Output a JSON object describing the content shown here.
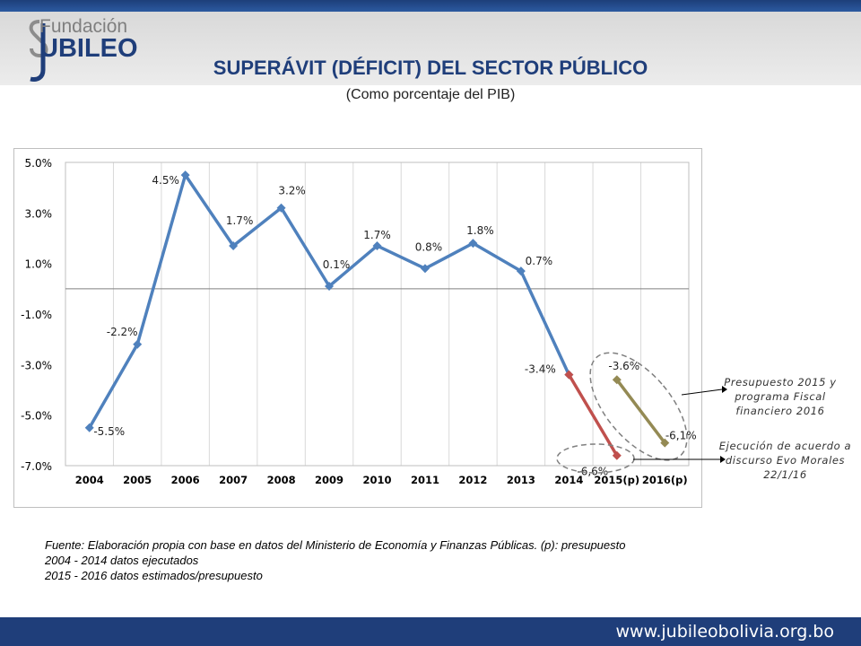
{
  "header": {
    "logo_line1": "Fundación",
    "logo_line2": "UBILEO",
    "title": "SUPERÁVIT (DÉFICIT) DEL SECTOR PÚBLICO",
    "subtitle": "(Como porcentaje del PIB)"
  },
  "colors": {
    "brand_blue": "#1f3e7a",
    "series_blue": "#4f81bd",
    "series_red": "#c0504d",
    "series_olive": "#948a54"
  },
  "chart_data": {
    "type": "line",
    "categories": [
      "2004",
      "2005",
      "2006",
      "2007",
      "2008",
      "2009",
      "2010",
      "2011",
      "2012",
      "2013",
      "2014",
      "2015(p)",
      "2016(p)"
    ],
    "ylim": [
      -7.0,
      5.0
    ],
    "yticks": [
      "5.0%",
      "3.0%",
      "1.0%",
      "-1.0%",
      "-3.0%",
      "-5.0%",
      "-7.0%"
    ],
    "grid": "vertical",
    "series": [
      {
        "values": [
          -5.5,
          -2.2,
          4.5,
          1.7,
          3.2,
          0.1,
          1.7,
          0.8,
          1.8,
          0.7,
          -3.4,
          null,
          null
        ],
        "labels": [
          "-5.5%",
          "-2.2%",
          "4.5%",
          "1.7%",
          "3.2%",
          "0.1%",
          "1.7%",
          "0.8%",
          "1.8%",
          "0.7%",
          "-3.4%",
          "",
          ""
        ],
        "color": "#4f81bd"
      },
      {
        "values": [
          null,
          null,
          null,
          null,
          null,
          null,
          null,
          null,
          null,
          null,
          -3.4,
          -6.6,
          null
        ],
        "labels": [
          "",
          "",
          "",
          "",
          "",
          "",
          "",
          "",
          "",
          "",
          "",
          "-6,6%",
          ""
        ],
        "color": "#c0504d"
      },
      {
        "values": [
          null,
          null,
          null,
          null,
          null,
          null,
          null,
          null,
          null,
          null,
          null,
          -3.6,
          -6.1
        ],
        "labels": [
          "",
          "",
          "",
          "",
          "",
          "",
          "",
          "",
          "",
          "",
          "",
          "-3.6%",
          "-6,1%"
        ],
        "color": "#948a54"
      }
    ],
    "annotations": [
      "Presupuesto 2015 y programa Fiscal financiero 2016",
      "Ejecución de acuerdo a discurso Evo Morales 22/1/16"
    ]
  },
  "annotations": {
    "budget_line1": "Presupuesto 2015 y",
    "budget_line2": "programa Fiscal",
    "budget_line3": "financiero 2016",
    "exec_line1": "Ejecución de acuerdo a",
    "exec_line2": "discurso Evo Morales",
    "exec_line3": "22/1/16"
  },
  "source": {
    "line1": "Fuente: Elaboración propia con base en datos del Ministerio de Economía y Finanzas Públicas. (p): presupuesto",
    "line2": "2004 - 2014 datos ejecutados",
    "line3": "2015 - 2016 datos estimados/presupuesto"
  },
  "footer": {
    "url": "www.jubileobolivia.org.bo"
  }
}
